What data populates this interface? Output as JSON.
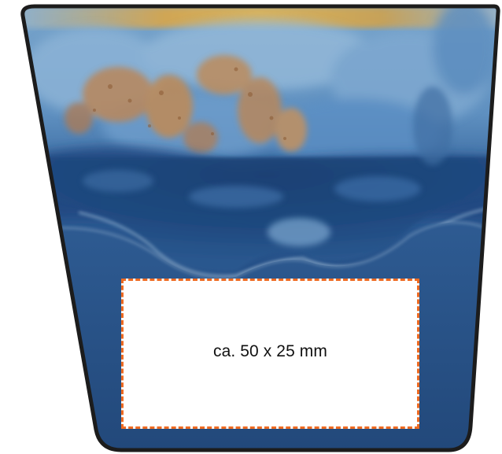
{
  "print_area": {
    "label": "ca. 50 x 25 mm"
  },
  "colors": {
    "outline": "#1c1c1c",
    "glaze_top": "#6f9ec8",
    "glaze_mid": "#2d5d96",
    "glaze_deep": "#173a68",
    "rust": "#b88652",
    "gold_rim": "#e0a63a",
    "dashed_border": "#ee6a21"
  },
  "icons": {
    "product": "ceramic-planter-pot"
  }
}
